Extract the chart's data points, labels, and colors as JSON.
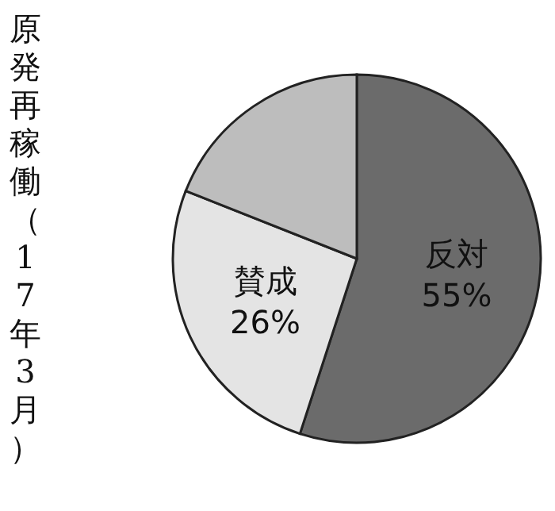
{
  "chart_data": {
    "type": "pie",
    "title": "原発再稼働（17年3月）",
    "categories": [
      "反対",
      "賛成",
      null
    ],
    "values": [
      55,
      26,
      19
    ],
    "value_labels": [
      "55%",
      "26%",
      null
    ],
    "colors": [
      "#6b6b6b",
      "#e4e4e4",
      "#bdbdbd"
    ]
  }
}
